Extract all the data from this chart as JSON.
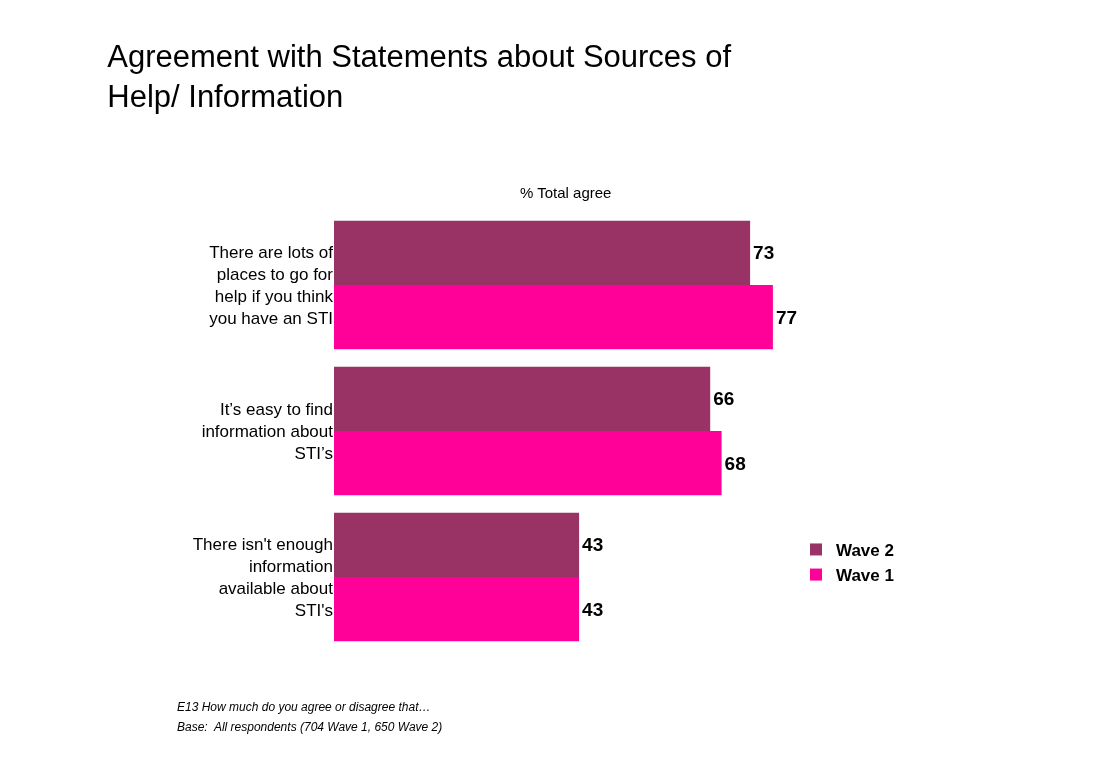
{
  "chart_data": {
    "type": "bar",
    "orientation": "horizontal",
    "title": "Agreement with Statements about Sources of Help/ Information",
    "subtitle": "% Total agree",
    "categories": [
      "There are lots of places to go for help if you think you have an STI",
      "It’s easy to find information about STI’s",
      "There isn't enough information available about STI's"
    ],
    "series": [
      {
        "name": "Wave 2",
        "color": "#993366",
        "values": [
          73,
          66,
          43
        ]
      },
      {
        "name": "Wave 1",
        "color": "#ff0099",
        "values": [
          77,
          68,
          43
        ]
      }
    ],
    "tick_labels": false,
    "data_labels": true,
    "legend": "right",
    "annotations": [
      "E13 How much do you agree or disagree that…",
      "Base:  All respondents (704 Wave 1, 650 Wave 2)"
    ]
  }
}
